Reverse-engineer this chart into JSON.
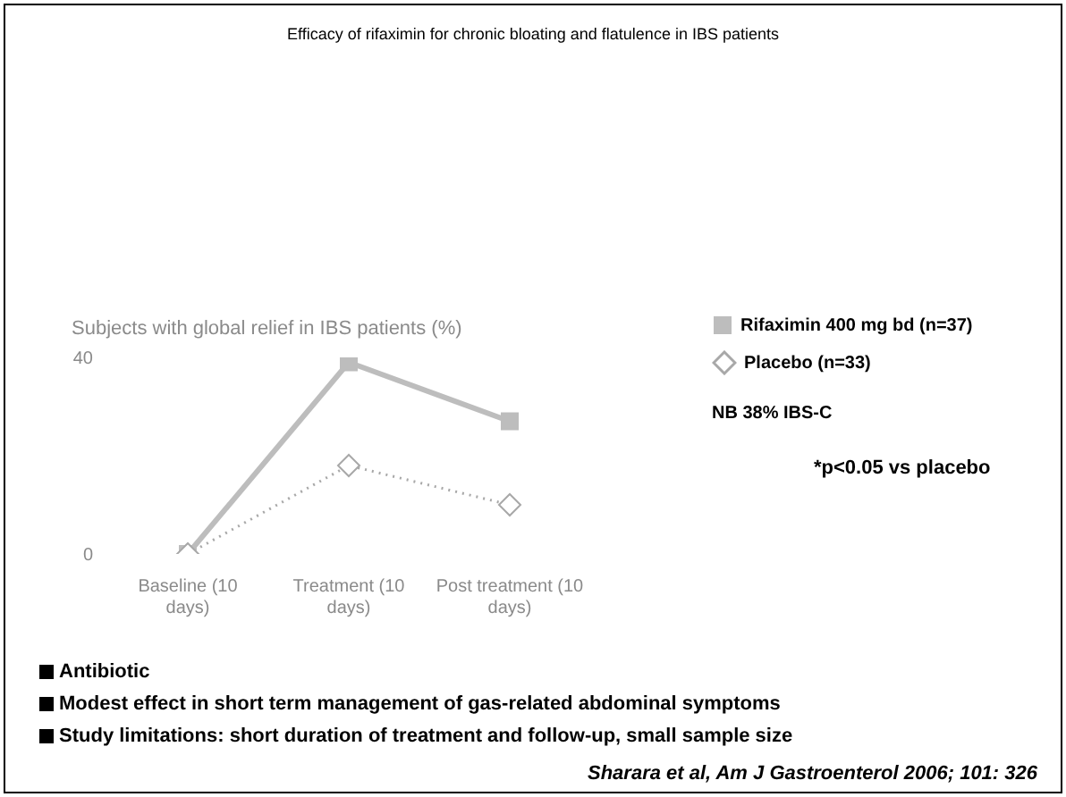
{
  "chart_data": {
    "type": "line",
    "title": "Efficacy of rifaximin for chronic bloating and flatulence in IBS patients",
    "ylabel": "Subjects with global relief in IBS patients (%)",
    "categories": [
      "Baseline (10 days)",
      "Treatment (10 days)",
      "Post treatment (10 days)"
    ],
    "series": [
      {
        "name": "Rifaximin 400 mg bd (n=37)",
        "color": "#bdbdbd",
        "values": [
          0,
          39,
          27
        ],
        "marker": "square",
        "line_style": "solid"
      },
      {
        "name": "Placebo (n=33)",
        "color": "#a8a8a8",
        "values": [
          0,
          18,
          10
        ],
        "marker": "diamond",
        "line_style": "dotted"
      }
    ],
    "ylim": [
      0,
      40
    ],
    "yticks": [
      0,
      40
    ],
    "grid": false,
    "legend": "right",
    "annotations": [
      "NB 38% IBS-C",
      "*p<0.05 vs placebo",
      "Antibiotic",
      "Modest effect in short term management of gas-related abdominal symptoms",
      "Study limitations: short duration of treatment and follow-up, small sample size",
      "Sharara et al, Am J Gastroenterol 2006; 101: 326"
    ]
  }
}
